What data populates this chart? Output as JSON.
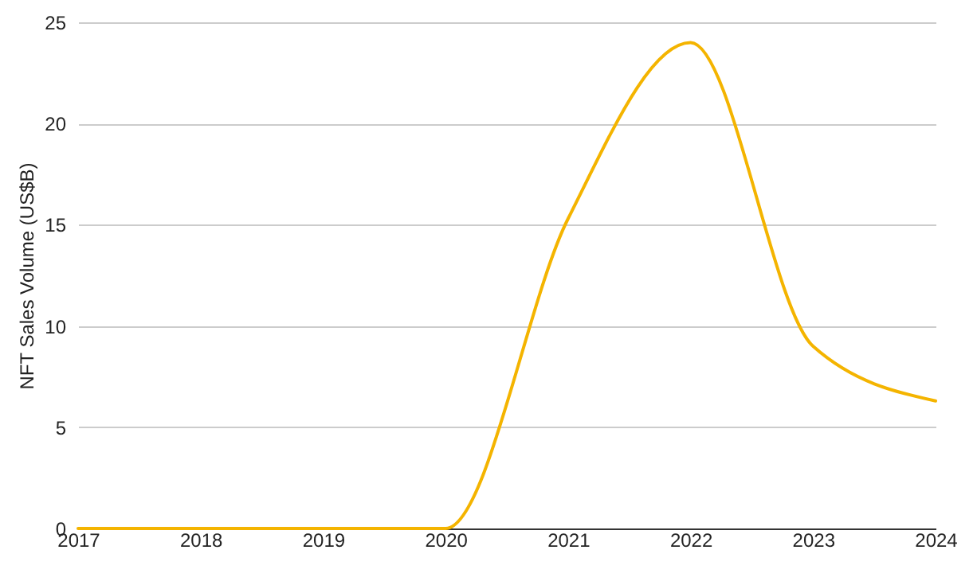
{
  "chart_data": {
    "type": "line",
    "ylabel": "NFT Sales Volume (US$B)",
    "x": [
      2017,
      2018,
      2019,
      2020,
      2021,
      2022,
      2023,
      2024
    ],
    "series": [
      {
        "color": "#f4b400",
        "values": [
          0,
          0,
          0,
          0,
          15.3,
          24.0,
          9.0,
          6.3
        ]
      }
    ],
    "xlim": [
      2017,
      2024
    ],
    "xticks": [
      2017,
      2018,
      2019,
      2020,
      2021,
      2022,
      2023,
      2024
    ],
    "ylim": [
      0,
      25
    ],
    "yticks": [
      0,
      5,
      10,
      15,
      20,
      25
    ],
    "grid": "y",
    "marker": "none",
    "line_style": "solid"
  }
}
